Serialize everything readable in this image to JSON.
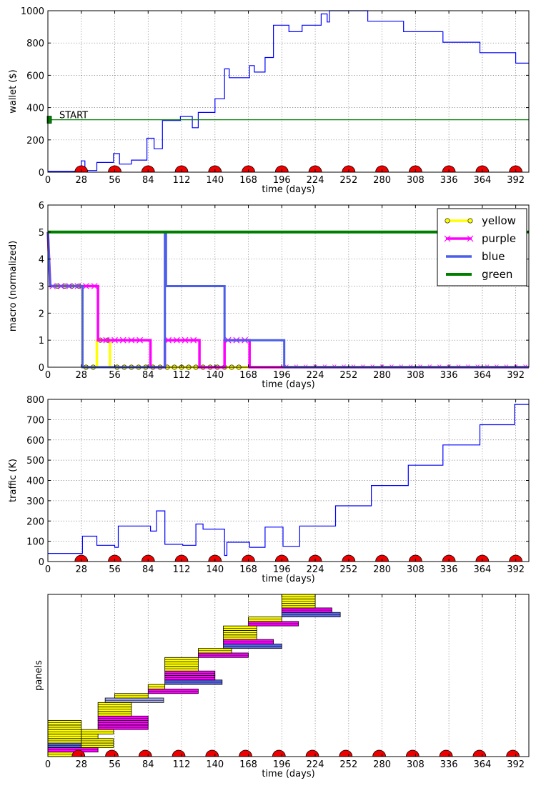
{
  "chart_data": [
    {
      "type": "line",
      "xlabel": "time (days)",
      "ylabel": "wallet ($)",
      "xlim": [
        0,
        403
      ],
      "ylim": [
        0,
        1000
      ],
      "xticks": [
        0,
        28,
        56,
        84,
        112,
        140,
        168,
        196,
        224,
        252,
        280,
        308,
        336,
        364,
        392
      ],
      "yticks": [
        0,
        200,
        400,
        600,
        800,
        1000
      ],
      "grid": true,
      "annotation": {
        "text": "START",
        "x": 0,
        "y": 325
      },
      "series": [
        {
          "color": "#0000ff",
          "points": [
            [
              0,
              5
            ],
            [
              28,
              5
            ],
            [
              28,
              70
            ],
            [
              31,
              70
            ],
            [
              31,
              10
            ],
            [
              41,
              10
            ],
            [
              41,
              60
            ],
            [
              55,
              60
            ],
            [
              55,
              115
            ],
            [
              60,
              115
            ],
            [
              60,
              50
            ],
            [
              70,
              50
            ],
            [
              70,
              75
            ],
            [
              83,
              75
            ],
            [
              83,
              210
            ],
            [
              89,
              210
            ],
            [
              89,
              145
            ],
            [
              96,
              145
            ],
            [
              96,
              320
            ],
            [
              111,
              320
            ],
            [
              111,
              345
            ],
            [
              121,
              345
            ],
            [
              121,
              275
            ],
            [
              126,
              275
            ],
            [
              126,
              370
            ],
            [
              140,
              370
            ],
            [
              140,
              455
            ],
            [
              148,
              455
            ],
            [
              148,
              640
            ],
            [
              152,
              640
            ],
            [
              152,
              585
            ],
            [
              169,
              585
            ],
            [
              169,
              660
            ],
            [
              173,
              660
            ],
            [
              173,
              620
            ],
            [
              182,
              620
            ],
            [
              182,
              710
            ],
            [
              189,
              710
            ],
            [
              189,
              910
            ],
            [
              202,
              910
            ],
            [
              202,
              870
            ],
            [
              213,
              870
            ],
            [
              213,
              910
            ],
            [
              229,
              910
            ],
            [
              229,
              980
            ],
            [
              234,
              980
            ],
            [
              234,
              930
            ],
            [
              236,
              930
            ],
            [
              236,
              1000
            ],
            [
              268,
              1000
            ],
            [
              268,
              935
            ],
            [
              298,
              935
            ],
            [
              298,
              870
            ],
            [
              331,
              870
            ],
            [
              331,
              805
            ],
            [
              362,
              805
            ],
            [
              362,
              740
            ],
            [
              392,
              740
            ],
            [
              392,
              675
            ],
            [
              403,
              675
            ]
          ]
        },
        {
          "color": "#008000",
          "points": [
            [
              0,
              325
            ],
            [
              403,
              325
            ]
          ]
        }
      ],
      "markers_x": [
        28,
        56,
        84,
        112,
        140,
        168,
        196,
        224,
        252,
        280,
        308,
        336,
        364,
        392
      ]
    },
    {
      "type": "line",
      "xlabel": "time (days)",
      "ylabel": "macro (normalized)",
      "xlim": [
        0,
        403
      ],
      "ylim": [
        0,
        6
      ],
      "xticks": [
        0,
        28,
        56,
        84,
        112,
        140,
        168,
        196,
        224,
        252,
        280,
        308,
        336,
        364,
        392
      ],
      "yticks": [
        0,
        1,
        2,
        3,
        4,
        5,
        6
      ],
      "grid": true,
      "legend": "upper right",
      "series": [
        {
          "name": "yellow",
          "color": "#ffff00",
          "points": [
            [
              0,
              5
            ],
            [
              2,
              3
            ],
            [
              29,
              3
            ],
            [
              29,
              0
            ],
            [
              41,
              0
            ],
            [
              41,
              1
            ],
            [
              52,
              1
            ],
            [
              52,
              0
            ],
            [
              403,
              0
            ]
          ]
        },
        {
          "name": "purple",
          "color": "#ff00ff",
          "points": [
            [
              0,
              5
            ],
            [
              2,
              3
            ],
            [
              42,
              3
            ],
            [
              42,
              1
            ],
            [
              86,
              1
            ],
            [
              86,
              0
            ],
            [
              98,
              0
            ],
            [
              98,
              1
            ],
            [
              127,
              1
            ],
            [
              127,
              0
            ],
            [
              148,
              0
            ],
            [
              148,
              1
            ],
            [
              169,
              1
            ],
            [
              169,
              0
            ],
            [
              403,
              0
            ]
          ]
        },
        {
          "name": "blue",
          "color": "#4a5ee8",
          "points": [
            [
              0,
              5
            ],
            [
              2,
              3
            ],
            [
              29,
              3
            ],
            [
              29,
              0
            ],
            [
              98,
              0
            ],
            [
              98,
              5
            ],
            [
              99,
              5
            ],
            [
              99,
              3
            ],
            [
              148,
              3
            ],
            [
              148,
              1
            ],
            [
              198,
              1
            ],
            [
              198,
              0
            ],
            [
              403,
              0
            ]
          ]
        },
        {
          "name": "green",
          "color": "#008000",
          "points": [
            [
              0,
              5
            ],
            [
              403,
              5
            ]
          ]
        }
      ]
    },
    {
      "type": "line",
      "xlabel": "time (days)",
      "ylabel": "traffic (K)",
      "xlim": [
        0,
        403
      ],
      "ylim": [
        0,
        800
      ],
      "xticks": [
        0,
        28,
        56,
        84,
        112,
        140,
        168,
        196,
        224,
        252,
        280,
        308,
        336,
        364,
        392
      ],
      "yticks": [
        0,
        100,
        200,
        300,
        400,
        500,
        600,
        700,
        800
      ],
      "grid": true,
      "series": [
        {
          "color": "#0000ff",
          "points": [
            [
              0,
              40
            ],
            [
              29,
              40
            ],
            [
              29,
              125
            ],
            [
              41,
              125
            ],
            [
              41,
              80
            ],
            [
              56,
              80
            ],
            [
              56,
              70
            ],
            [
              59,
              70
            ],
            [
              59,
              175
            ],
            [
              86,
              175
            ],
            [
              86,
              150
            ],
            [
              91,
              150
            ],
            [
              91,
              250
            ],
            [
              98,
              250
            ],
            [
              98,
              85
            ],
            [
              113,
              85
            ],
            [
              113,
              80
            ],
            [
              124,
              80
            ],
            [
              124,
              185
            ],
            [
              130,
              185
            ],
            [
              130,
              160
            ],
            [
              148,
              160
            ],
            [
              148,
              30
            ],
            [
              150,
              30
            ],
            [
              150,
              95
            ],
            [
              169,
              95
            ],
            [
              169,
              70
            ],
            [
              182,
              70
            ],
            [
              182,
              170
            ],
            [
              197,
              170
            ],
            [
              197,
              75
            ],
            [
              211,
              75
            ],
            [
              211,
              175
            ],
            [
              241,
              175
            ],
            [
              241,
              275
            ],
            [
              271,
              275
            ],
            [
              271,
              375
            ],
            [
              302,
              375
            ],
            [
              302,
              475
            ],
            [
              331,
              475
            ],
            [
              331,
              575
            ],
            [
              362,
              575
            ],
            [
              362,
              675
            ],
            [
              391,
              675
            ],
            [
              391,
              775
            ],
            [
              403,
              775
            ]
          ]
        }
      ],
      "markers_x": [
        28,
        56,
        84,
        112,
        140,
        168,
        196,
        224,
        252,
        280,
        308,
        336,
        364,
        392
      ]
    },
    {
      "type": "bar",
      "orientation": "horizontal",
      "xlabel": "time (days)",
      "ylabel": "panels",
      "xlim": [
        0,
        403
      ],
      "xticks": [
        0,
        28,
        56,
        84,
        112,
        140,
        168,
        196,
        224,
        252,
        280,
        308,
        336,
        364,
        392
      ],
      "grid": true,
      "bars": [
        {
          "start": 0,
          "end": 28,
          "row": 0.5,
          "color": "#ffff00"
        },
        {
          "start": 0,
          "end": 42,
          "row": 1.5,
          "color": "#ff00ff"
        },
        {
          "start": 0,
          "end": 28,
          "row": 2.5,
          "color": "#5a6ae8"
        },
        {
          "start": 0,
          "end": 28,
          "row": 3.5,
          "color": "#ffff00"
        },
        {
          "start": 0,
          "end": 28,
          "row": 4.5,
          "color": "#ffff00"
        },
        {
          "start": 0,
          "end": 28,
          "row": 5.5,
          "color": "#ffff00"
        },
        {
          "start": 0,
          "end": 28,
          "row": 6.5,
          "color": "#ffff00"
        },
        {
          "start": 0,
          "end": 28,
          "row": 7.5,
          "color": "#ffff00"
        },
        {
          "start": 28,
          "end": 55,
          "row": 2.5,
          "color": "#ffff00"
        },
        {
          "start": 28,
          "end": 55,
          "row": 3.5,
          "color": "#ffff00"
        },
        {
          "start": 28,
          "end": 42,
          "row": 4.5,
          "color": "#ffff00"
        },
        {
          "start": 28,
          "end": 55,
          "row": 5.5,
          "color": "#ffff00"
        },
        {
          "start": 42,
          "end": 84,
          "row": 6.5,
          "color": "#ff00ff"
        },
        {
          "start": 42,
          "end": 84,
          "row": 7.5,
          "color": "#ff00ff"
        },
        {
          "start": 42,
          "end": 84,
          "row": 8.5,
          "color": "#ff00ff"
        },
        {
          "start": 42,
          "end": 70,
          "row": 9.5,
          "color": "#ffff00"
        },
        {
          "start": 42,
          "end": 70,
          "row": 10.5,
          "color": "#ffff00"
        },
        {
          "start": 42,
          "end": 70,
          "row": 11.5,
          "color": "#ffff00"
        },
        {
          "start": 48,
          "end": 97,
          "row": 12.5,
          "color": "#aab0f0"
        },
        {
          "start": 56,
          "end": 84,
          "row": 13.5,
          "color": "#ffff00"
        },
        {
          "start": 84,
          "end": 126,
          "row": 14.5,
          "color": "#ff00ff"
        },
        {
          "start": 84,
          "end": 98,
          "row": 15.5,
          "color": "#ffff00"
        },
        {
          "start": 98,
          "end": 146,
          "row": 16.5,
          "color": "#5a6ae8"
        },
        {
          "start": 98,
          "end": 140,
          "row": 17.5,
          "color": "#ff00ff"
        },
        {
          "start": 98,
          "end": 140,
          "row": 18.5,
          "color": "#ff00ff"
        },
        {
          "start": 98,
          "end": 126,
          "row": 19.5,
          "color": "#ffff00"
        },
        {
          "start": 98,
          "end": 126,
          "row": 20.5,
          "color": "#ffff00"
        },
        {
          "start": 98,
          "end": 126,
          "row": 21.5,
          "color": "#ffff00"
        },
        {
          "start": 126,
          "end": 168,
          "row": 22.5,
          "color": "#ff00ff"
        },
        {
          "start": 126,
          "end": 154,
          "row": 23.5,
          "color": "#ffff00"
        },
        {
          "start": 147,
          "end": 196,
          "row": 24.5,
          "color": "#5a6ae8"
        },
        {
          "start": 147,
          "end": 189,
          "row": 25.5,
          "color": "#ff00ff"
        },
        {
          "start": 147,
          "end": 175,
          "row": 26.5,
          "color": "#ffff00"
        },
        {
          "start": 147,
          "end": 175,
          "row": 27.5,
          "color": "#ffff00"
        },
        {
          "start": 147,
          "end": 175,
          "row": 28.5,
          "color": "#ffff00"
        },
        {
          "start": 168,
          "end": 210,
          "row": 29.5,
          "color": "#ff00ff"
        },
        {
          "start": 168,
          "end": 196,
          "row": 30.5,
          "color": "#ffff00"
        },
        {
          "start": 196,
          "end": 245,
          "row": 31.5,
          "color": "#5a6ae8"
        },
        {
          "start": 196,
          "end": 238,
          "row": 32.5,
          "color": "#ff00ff"
        },
        {
          "start": 196,
          "end": 224,
          "row": 33.5,
          "color": "#ffff00"
        },
        {
          "start": 196,
          "end": 224,
          "row": 34.5,
          "color": "#ffff00"
        },
        {
          "start": 196,
          "end": 224,
          "row": 35.5,
          "color": "#ffff00"
        }
      ],
      "markers_x": [
        28,
        56,
        84,
        112,
        140,
        168,
        196,
        224,
        252,
        280,
        308,
        336,
        364,
        392
      ]
    }
  ]
}
